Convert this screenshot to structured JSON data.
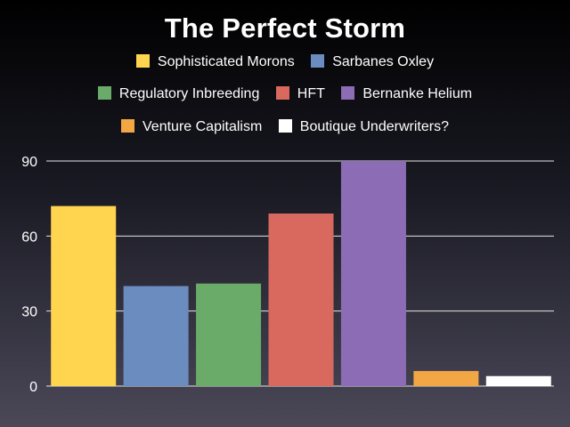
{
  "chart_data": {
    "type": "bar",
    "title": "The Perfect Storm",
    "categories": [
      "Sophisticated Morons",
      "Sarbanes Oxley",
      "Regulatory Inbreeding",
      "HFT",
      "Bernanke Helium",
      "Venture Capitalism",
      "Boutique Underwriters?"
    ],
    "values": [
      72,
      40,
      41,
      69,
      90,
      6,
      4
    ],
    "colors": [
      "#FFD54F",
      "#6B8CBE",
      "#6AAB6A",
      "#D9695F",
      "#8C6DB5",
      "#F2A744",
      "#FFFFFF"
    ],
    "xlabel": "",
    "ylabel": "",
    "ylim": [
      0,
      90
    ],
    "yticks": [
      0,
      30,
      60,
      90
    ],
    "grid": true,
    "legend_position": "top"
  }
}
